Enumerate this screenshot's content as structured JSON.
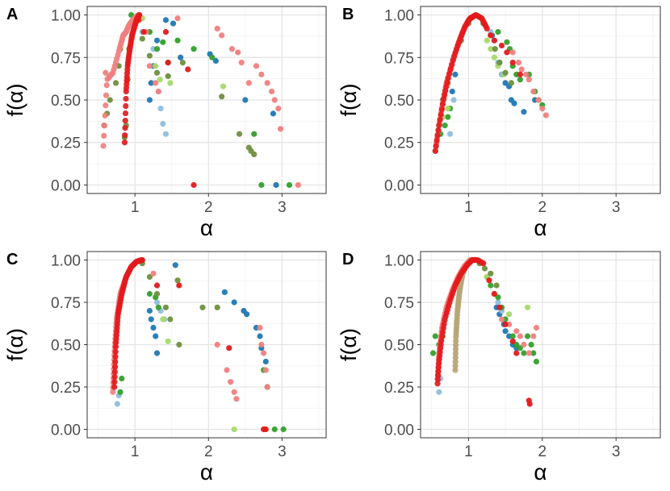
{
  "figure": {
    "panel_labels": [
      "A",
      "B",
      "C",
      "D"
    ]
  },
  "colors": {
    "dark_blue": "#1f78b4",
    "light_blue": "#8fbfdc",
    "dark_green": "#33a02c",
    "light_green": "#a6d96a",
    "olive": "#6f8f3e",
    "salmon": "#f08080",
    "red": "#e31a1c",
    "khaki": "#b7a474"
  },
  "chart_data": [
    {
      "type": "scatter",
      "panel": "A",
      "xlabel": "α",
      "ylabel": "f(α)",
      "xlim": [
        0.35,
        3.6
      ],
      "ylim": [
        -0.05,
        1.05
      ],
      "xticks": [
        1,
        2,
        3
      ],
      "xtick_labels": [
        "1",
        "2",
        "3"
      ],
      "yticks": [
        0,
        0.25,
        0.5,
        0.75,
        1
      ],
      "ytick_labels": [
        "0.00",
        "0.25",
        "0.50",
        "0.75",
        "1.00"
      ],
      "grid": true,
      "series": [
        {
          "name": "dark-blue",
          "color": "#1f78b4",
          "x": [
            1.2,
            1.22,
            1.25,
            1.3,
            1.42,
            1.52,
            1.62,
            2.02,
            2.1,
            2.5,
            2.88,
            2.92
          ],
          "y": [
            0.5,
            0.6,
            0.7,
            0.85,
            0.97,
            0.95,
            0.75,
            0.77,
            0.73,
            0.5,
            0.42,
            0.0
          ]
        },
        {
          "name": "light-blue",
          "color": "#8fbfdc",
          "x": [
            1.1,
            1.25,
            1.32,
            1.35,
            1.38,
            1.42
          ],
          "y": [
            0.9,
            0.8,
            0.55,
            0.45,
            0.36,
            0.3
          ]
        },
        {
          "name": "dark-green",
          "color": "#33a02c",
          "x": [
            0.95,
            1.05,
            1.2,
            1.3,
            1.38,
            1.45,
            1.58,
            1.8,
            2.05,
            2.62,
            2.72,
            3.1
          ],
          "y": [
            1.0,
            0.98,
            0.9,
            0.8,
            0.84,
            0.72,
            0.85,
            0.8,
            0.75,
            0.3,
            0.0,
            0.0
          ]
        },
        {
          "name": "light-green",
          "color": "#a6d96a",
          "x": [
            1.1,
            1.28,
            1.34,
            1.48,
            2.2
          ],
          "y": [
            0.98,
            0.7,
            0.62,
            0.6,
            0.58
          ]
        },
        {
          "name": "olive",
          "color": "#6f8f3e",
          "x": [
            0.58,
            0.62,
            0.66,
            0.74,
            0.78,
            0.8,
            0.86,
            0.88,
            0.9,
            0.92,
            1.0,
            1.1,
            1.2,
            1.3,
            1.45,
            1.65,
            2.18,
            2.42,
            2.55,
            2.58,
            2.62
          ],
          "y": [
            0.35,
            0.42,
            0.5,
            0.6,
            0.7,
            0.8,
            0.28,
            0.35,
            0.62,
            0.8,
            0.95,
            0.86,
            0.76,
            0.66,
            0.64,
            0.72,
            0.52,
            0.3,
            0.22,
            0.2,
            0.18
          ]
        },
        {
          "name": "salmon",
          "color": "#f08080",
          "curve": {
            "alpha": [
              0.57,
              0.62,
              0.7,
              0.79,
              0.84,
              0.88,
              0.92,
              0.97,
              1.02,
              1.05
            ],
            "f": [
              0.23,
              0.62,
              0.66,
              0.8,
              0.88,
              0.9,
              0.94,
              0.97,
              0.99,
              1.0
            ],
            "n": 60
          },
          "x": [
            0.6,
            1.15,
            1.2,
            1.28,
            1.32,
            1.58,
            2.12,
            2.18,
            2.32,
            2.4,
            2.45,
            2.55,
            2.65,
            2.72,
            2.8,
            2.86,
            2.9,
            2.95,
            2.98,
            3.22
          ],
          "y": [
            0.66,
            0.9,
            0.7,
            0.6,
            0.55,
            0.98,
            0.92,
            0.88,
            0.8,
            0.78,
            0.72,
            0.6,
            0.7,
            0.65,
            0.6,
            0.55,
            0.5,
            0.45,
            0.33,
            0.0
          ]
        },
        {
          "name": "red",
          "color": "#e31a1c",
          "curve": {
            "alpha": [
              0.86,
              0.88,
              0.9,
              0.93,
              0.96,
              1.0,
              1.03,
              1.06
            ],
            "f": [
              0.25,
              0.55,
              0.7,
              0.8,
              0.88,
              0.94,
              0.98,
              1.0
            ],
            "n": 50
          },
          "x": [
            1.05,
            1.12,
            1.42,
            1.45,
            1.72,
            1.8
          ],
          "y": [
            0.97,
            0.9,
            0.9,
            0.72,
            0.68,
            0.0
          ]
        }
      ]
    },
    {
      "type": "scatter",
      "panel": "B",
      "xlabel": "α",
      "ylabel": "f(α)",
      "xlim": [
        0.35,
        3.6
      ],
      "ylim": [
        -0.05,
        1.05
      ],
      "xticks": [
        1,
        2,
        3
      ],
      "xtick_labels": [
        "1",
        "2",
        "3"
      ],
      "yticks": [
        0,
        0.25,
        0.5,
        0.75,
        1
      ],
      "ytick_labels": [
        "0.00",
        "0.25",
        "0.50",
        "0.75",
        "1.00"
      ],
      "grid": true,
      "series": [
        {
          "name": "dark-blue",
          "color": "#1f78b4",
          "x": [
            0.78,
            0.82,
            1.32,
            1.42,
            1.45,
            1.5,
            1.55,
            1.58,
            1.62,
            1.75,
            1.9
          ],
          "y": [
            0.55,
            0.65,
            0.88,
            0.72,
            0.65,
            0.6,
            0.58,
            0.5,
            0.48,
            0.43,
            0.5
          ]
        },
        {
          "name": "light-blue",
          "color": "#8fbfdc",
          "x": [
            0.75,
            0.8,
            1.3,
            1.35,
            1.4,
            1.45
          ],
          "y": [
            0.3,
            0.5,
            0.9,
            0.85,
            0.72,
            0.65
          ]
        },
        {
          "name": "dark-green",
          "color": "#33a02c",
          "x": [
            0.62,
            0.68,
            0.72,
            0.75,
            1.4,
            1.52,
            1.56,
            1.6,
            1.65,
            1.7,
            1.82,
            1.9,
            1.95,
            2.0
          ],
          "y": [
            0.3,
            0.35,
            0.4,
            0.45,
            0.9,
            0.84,
            0.8,
            0.7,
            0.65,
            0.62,
            0.65,
            0.55,
            0.5,
            0.47
          ]
        },
        {
          "name": "light-green",
          "color": "#a6d96a",
          "x": [
            0.6,
            0.65,
            0.72,
            1.25,
            1.3,
            1.35,
            1.4,
            1.48
          ],
          "y": [
            0.35,
            0.4,
            0.45,
            0.85,
            0.8,
            0.75,
            0.7,
            0.65
          ]
        },
        {
          "name": "olive",
          "color": "#6f8f3e",
          "x": [
            0.65,
            0.72,
            0.8,
            0.9,
            1.0,
            1.2,
            1.3,
            1.36,
            1.42,
            1.5,
            1.58
          ],
          "y": [
            0.5,
            0.6,
            0.75,
            0.85,
            0.95,
            0.95,
            0.88,
            0.8,
            0.72,
            0.66,
            0.6
          ]
        },
        {
          "name": "salmon",
          "color": "#f08080",
          "curve": {
            "alpha": [
              0.55,
              0.6,
              0.65,
              0.7,
              0.78,
              0.85,
              0.92,
              1.0,
              1.1
            ],
            "f": [
              0.2,
              0.35,
              0.48,
              0.6,
              0.72,
              0.82,
              0.9,
              0.97,
              1.0
            ],
            "n": 50
          },
          "x": [
            1.6,
            1.68,
            1.72,
            1.78,
            1.82,
            1.88,
            1.95,
            2.0,
            2.05
          ],
          "y": [
            0.78,
            0.72,
            0.68,
            0.65,
            0.62,
            0.55,
            0.5,
            0.45,
            0.41
          ]
        },
        {
          "name": "red",
          "color": "#e31a1c",
          "curve": {
            "alpha": [
              0.55,
              0.6,
              0.66,
              0.72,
              0.8,
              0.88,
              0.95,
              1.02,
              1.1,
              1.18,
              1.25
            ],
            "f": [
              0.2,
              0.35,
              0.5,
              0.62,
              0.75,
              0.85,
              0.93,
              0.98,
              1.0,
              0.98,
              0.92
            ],
            "n": 50
          },
          "x": [
            1.3,
            1.35,
            1.45,
            1.52,
            1.6,
            1.7
          ],
          "y": [
            0.88,
            0.85,
            0.82,
            0.78,
            0.72,
            0.65
          ]
        }
      ]
    },
    {
      "type": "scatter",
      "panel": "C",
      "xlabel": "α",
      "ylabel": "f(α)",
      "xlim": [
        0.35,
        3.6
      ],
      "ylim": [
        -0.05,
        1.05
      ],
      "xticks": [
        1,
        2,
        3
      ],
      "xtick_labels": [
        "1",
        "2",
        "3"
      ],
      "yticks": [
        0,
        0.25,
        0.5,
        0.75,
        1
      ],
      "ytick_labels": [
        "0.00",
        "0.25",
        "0.50",
        "0.75",
        "1.00"
      ],
      "grid": true,
      "series": [
        {
          "name": "dark-blue",
          "color": "#1f78b4",
          "x": [
            1.2,
            1.22,
            1.25,
            1.28,
            1.3,
            1.55,
            2.22,
            2.35,
            2.48,
            2.52,
            2.65,
            2.7,
            2.72,
            2.78
          ],
          "y": [
            0.7,
            0.65,
            0.6,
            0.55,
            0.45,
            0.97,
            0.81,
            0.75,
            0.7,
            0.68,
            0.6,
            0.55,
            0.48,
            0.4
          ]
        },
        {
          "name": "light-blue",
          "color": "#8fbfdc",
          "x": [
            0.76,
            0.78,
            1.3,
            1.35,
            1.4
          ],
          "y": [
            0.15,
            0.2,
            0.75,
            0.7,
            0.65
          ]
        },
        {
          "name": "dark-green",
          "color": "#33a02c",
          "x": [
            0.8,
            0.82,
            1.2,
            1.28,
            1.32,
            2.75,
            2.8,
            2.9,
            3.02
          ],
          "y": [
            0.22,
            0.3,
            0.8,
            0.78,
            0.72,
            0.35,
            0.25,
            0.0,
            0.0
          ]
        },
        {
          "name": "light-green",
          "color": "#a6d96a",
          "x": [
            1.38,
            1.45,
            2.35
          ],
          "y": [
            0.65,
            0.52,
            0.0
          ]
        },
        {
          "name": "olive",
          "color": "#6f8f3e",
          "x": [
            1.1,
            1.2,
            1.3,
            1.42,
            1.48,
            1.58,
            1.6,
            1.92,
            2.12
          ],
          "y": [
            0.98,
            0.9,
            0.8,
            0.72,
            0.65,
            0.88,
            0.5,
            0.72,
            0.72
          ]
        },
        {
          "name": "salmon",
          "color": "#f08080",
          "curve": {
            "alpha": [
              0.7,
              0.72,
              0.75,
              0.8,
              0.88,
              0.95,
              1.02,
              1.08
            ],
            "f": [
              0.22,
              0.45,
              0.65,
              0.8,
              0.9,
              0.96,
              0.99,
              1.0
            ],
            "n": 60
          },
          "x": [
            1.25,
            2.12,
            2.25,
            2.3,
            2.35,
            2.38,
            2.7,
            2.72,
            2.75,
            2.78,
            2.8
          ],
          "y": [
            0.92,
            0.5,
            0.35,
            0.28,
            0.22,
            0.18,
            0.6,
            0.5,
            0.45,
            0.35,
            0.25
          ]
        },
        {
          "name": "red",
          "color": "#e31a1c",
          "curve": {
            "alpha": [
              0.72,
              0.74,
              0.77,
              0.82,
              0.88,
              0.95,
              1.02,
              1.1
            ],
            "f": [
              0.25,
              0.5,
              0.68,
              0.8,
              0.9,
              0.96,
              0.99,
              1.0
            ],
            "n": 60
          },
          "x": [
            1.3,
            1.6,
            2.28,
            2.75,
            2.78
          ],
          "y": [
            0.85,
            0.85,
            0.48,
            0.0,
            0.0
          ]
        }
      ]
    },
    {
      "type": "scatter",
      "panel": "D",
      "xlabel": "α",
      "ylabel": "f(α)",
      "xlim": [
        0.35,
        3.6
      ],
      "ylim": [
        -0.05,
        1.05
      ],
      "xticks": [
        1,
        2,
        3
      ],
      "xtick_labels": [
        "1",
        "2",
        "3"
      ],
      "yticks": [
        0,
        0.25,
        0.5,
        0.75,
        1
      ],
      "ytick_labels": [
        "0.00",
        "0.25",
        "0.50",
        "0.75",
        "1.00"
      ],
      "grid": true,
      "series": [
        {
          "name": "dark-blue",
          "color": "#1f78b4",
          "x": [
            1.38,
            1.42,
            1.48,
            1.5,
            1.55,
            1.6,
            1.65
          ],
          "y": [
            0.72,
            0.68,
            0.62,
            0.58,
            0.55,
            0.5,
            0.48
          ]
        },
        {
          "name": "light-blue",
          "color": "#8fbfdc",
          "x": [
            0.6,
            0.62,
            1.4,
            1.45
          ],
          "y": [
            0.22,
            0.3,
            0.75,
            0.7
          ]
        },
        {
          "name": "dark-green",
          "color": "#33a02c",
          "x": [
            0.52,
            0.55,
            0.6,
            0.65,
            1.25,
            1.3,
            1.35,
            1.4,
            1.45,
            1.5,
            1.6,
            1.65,
            1.7,
            1.75,
            1.8,
            1.85,
            1.88,
            1.92
          ],
          "y": [
            0.45,
            0.55,
            0.5,
            0.55,
            0.9,
            0.85,
            0.8,
            0.78,
            0.72,
            0.65,
            0.55,
            0.5,
            0.48,
            0.45,
            0.55,
            0.5,
            0.45,
            0.4
          ]
        },
        {
          "name": "light-green",
          "color": "#a6d96a",
          "x": [
            1.25,
            1.35,
            1.55,
            1.8
          ],
          "y": [
            0.9,
            0.8,
            0.68,
            0.72
          ]
        },
        {
          "name": "olive",
          "color": "#6f8f3e",
          "x": [
            1.15,
            1.22,
            1.3,
            1.38
          ],
          "y": [
            0.98,
            0.95,
            0.92,
            0.85
          ]
        },
        {
          "name": "khaki",
          "color": "#b7a474",
          "curve": {
            "alpha": [
              0.82,
              0.83,
              0.85,
              0.88,
              0.92,
              0.98,
              1.05
            ],
            "f": [
              0.35,
              0.55,
              0.7,
              0.82,
              0.92,
              0.98,
              1.0
            ],
            "n": 50
          },
          "x": [],
          "y": []
        },
        {
          "name": "salmon",
          "color": "#f08080",
          "curve": {
            "alpha": [
              0.58,
              0.6,
              0.64,
              0.7,
              0.78,
              0.86,
              0.94,
              1.02
            ],
            "f": [
              0.3,
              0.45,
              0.6,
              0.72,
              0.82,
              0.9,
              0.96,
              1.0
            ],
            "n": 50
          },
          "x": [
            1.45,
            1.55,
            1.65,
            1.7,
            1.75,
            1.82,
            1.88,
            1.92
          ],
          "y": [
            0.65,
            0.62,
            0.58,
            0.55,
            0.5,
            0.45,
            0.55,
            0.6
          ]
        },
        {
          "name": "red",
          "color": "#e31a1c",
          "curve": {
            "alpha": [
              0.58,
              0.6,
              0.63,
              0.68,
              0.75,
              0.82,
              0.9,
              0.98,
              1.05,
              1.12,
              1.2
            ],
            "f": [
              0.27,
              0.4,
              0.52,
              0.65,
              0.76,
              0.85,
              0.92,
              0.97,
              1.0,
              1.0,
              0.98
            ],
            "n": 55
          },
          "x": [
            1.28,
            1.35,
            1.42,
            1.5,
            1.6,
            1.65,
            1.82,
            1.83
          ],
          "y": [
            0.88,
            0.8,
            0.72,
            0.62,
            0.52,
            0.45,
            0.17,
            0.15
          ]
        }
      ]
    }
  ]
}
